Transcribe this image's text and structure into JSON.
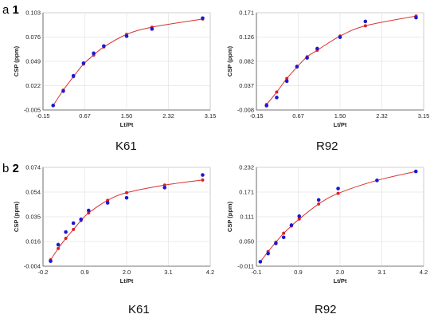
{
  "sections": [
    {
      "letter": "a",
      "number": "1"
    },
    {
      "letter": "b",
      "number": "2"
    }
  ],
  "colors": {
    "observed": "#1a1ad0",
    "fitted": "#e02020",
    "curve": "#d93030",
    "grid": "#e4e4e4",
    "axis": "#555555"
  },
  "chart_data": [
    {
      "type": "scatter",
      "panel": "a1-left",
      "residue": "K61",
      "xlabel": "Lt/Pt",
      "ylabel": "CSP (ppm)",
      "xticks": [
        "-0.15",
        "0.67",
        "1.50",
        "2.32",
        "3.15"
      ],
      "yticks": [
        "-0.005",
        "0.022",
        "0.049",
        "0.076",
        "0.103"
      ],
      "xlim": [
        -0.15,
        3.15
      ],
      "ylim": [
        -0.005,
        0.103
      ],
      "series": [
        {
          "name": "",
          "role": "observed",
          "x": [
            0.05,
            0.25,
            0.45,
            0.65,
            0.85,
            1.05,
            1.5,
            2.0,
            3.0
          ],
          "y": [
            0.0,
            0.016,
            0.033,
            0.047,
            0.058,
            0.066,
            0.077,
            0.085,
            0.097
          ]
        },
        {
          "name": "",
          "role": "fitted",
          "x": [
            0.05,
            0.25,
            0.45,
            0.65,
            0.85,
            1.05,
            1.5,
            2.0,
            3.0
          ],
          "y": [
            0.0,
            0.017,
            0.032,
            0.046,
            0.056,
            0.065,
            0.079,
            0.087,
            0.096
          ]
        }
      ]
    },
    {
      "type": "scatter",
      "panel": "a1-right",
      "residue": "R92",
      "xlabel": "Lt/Pt",
      "ylabel": "CSP (ppm)",
      "xticks": [
        "-0.15",
        "0.67",
        "1.50",
        "2.32",
        "3.15"
      ],
      "yticks": [
        "-0.008",
        "0.037",
        "0.082",
        "0.126",
        "0.171"
      ],
      "xlim": [
        -0.15,
        3.15
      ],
      "ylim": [
        -0.008,
        0.171
      ],
      "series": [
        {
          "name": "",
          "role": "observed",
          "x": [
            0.05,
            0.25,
            0.45,
            0.65,
            0.85,
            1.05,
            1.5,
            2.0,
            3.0
          ],
          "y": [
            0.0,
            0.015,
            0.045,
            0.072,
            0.088,
            0.105,
            0.126,
            0.155,
            0.162
          ]
        },
        {
          "name": "",
          "role": "fitted",
          "x": [
            0.05,
            0.25,
            0.45,
            0.65,
            0.85,
            1.05,
            1.5,
            2.0,
            3.0
          ],
          "y": [
            0.002,
            0.025,
            0.05,
            0.071,
            0.09,
            0.102,
            0.128,
            0.147,
            0.165
          ]
        }
      ]
    },
    {
      "type": "scatter",
      "panel": "b2-left",
      "residue": "K61",
      "xlabel": "Lt/Pt",
      "ylabel": "CSP (ppm)",
      "xticks": [
        "-0.2",
        "0.9",
        "2.0",
        "3.1",
        "4.2"
      ],
      "yticks": [
        "-0.004",
        "0.016",
        "0.035",
        "0.054",
        "0.074"
      ],
      "xlim": [
        -0.2,
        4.2
      ],
      "ylim": [
        -0.004,
        0.074
      ],
      "series": [
        {
          "name": "",
          "role": "observed",
          "x": [
            0.0,
            0.2,
            0.4,
            0.6,
            0.8,
            1.0,
            1.5,
            2.0,
            3.0,
            4.0
          ],
          "y": [
            0.0,
            0.013,
            0.023,
            0.03,
            0.033,
            0.04,
            0.046,
            0.05,
            0.058,
            0.068
          ]
        },
        {
          "name": "",
          "role": "fitted",
          "x": [
            0.0,
            0.2,
            0.4,
            0.6,
            0.8,
            1.0,
            1.5,
            2.0,
            3.0,
            4.0
          ],
          "y": [
            0.001,
            0.01,
            0.018,
            0.025,
            0.032,
            0.038,
            0.048,
            0.054,
            0.06,
            0.064
          ]
        }
      ]
    },
    {
      "type": "scatter",
      "panel": "b2-right",
      "residue": "R92",
      "xlabel": "Lt/Pt",
      "ylabel": "CSP (ppm)",
      "xticks": [
        "-0.1",
        "0.9",
        "2.0",
        "3.1",
        "4.2"
      ],
      "yticks": [
        "-0.011",
        "0.050",
        "0.111",
        "0.171",
        "0.232"
      ],
      "xlim": [
        -0.1,
        4.2
      ],
      "ylim": [
        -0.011,
        0.232
      ],
      "series": [
        {
          "name": "",
          "role": "observed",
          "x": [
            0.0,
            0.2,
            0.4,
            0.6,
            0.8,
            1.0,
            1.5,
            2.0,
            3.0,
            4.0
          ],
          "y": [
            0.0,
            0.02,
            0.045,
            0.06,
            0.09,
            0.112,
            0.152,
            0.18,
            0.2,
            0.222
          ]
        },
        {
          "name": "",
          "role": "fitted",
          "x": [
            0.0,
            0.2,
            0.4,
            0.6,
            0.8,
            1.0,
            1.5,
            2.0,
            3.0,
            4.0
          ],
          "y": [
            0.0,
            0.025,
            0.048,
            0.07,
            0.088,
            0.105,
            0.142,
            0.168,
            0.2,
            0.222
          ]
        }
      ]
    }
  ]
}
